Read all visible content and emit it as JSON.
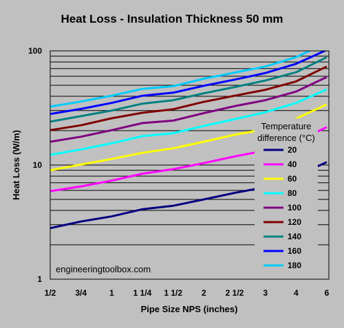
{
  "chart_data": {
    "type": "line",
    "title": "Heat Loss - Insulation Thickness 50 mm",
    "xlabel": "Pipe Size NPS (inches)",
    "ylabel": "Heat Loss (W/m)",
    "yscale": "log",
    "ylim": [
      1,
      100
    ],
    "y_tick_labels": [
      "1",
      "10",
      "100"
    ],
    "categories": [
      "1/2",
      "3/4",
      "1",
      "1 1/4",
      "1 1/2",
      "2",
      "2 1/2",
      "3",
      "4",
      "6"
    ],
    "grid": true,
    "legend": {
      "title_line1": "Temperature",
      "title_line2": "difference (°C)",
      "placement": "right"
    },
    "watermark": "engineeringtoolbox.com",
    "series": [
      {
        "name": "20",
        "color": "#000080",
        "values": [
          2.8,
          3.2,
          3.55,
          4.1,
          4.4,
          5.0,
          5.7,
          6.4,
          8.0,
          10.6
        ]
      },
      {
        "name": "40",
        "color": "#ff00ff",
        "values": [
          5.9,
          6.5,
          7.3,
          8.4,
          9.2,
          10.4,
          11.9,
          13.4,
          16.0,
          21.5
        ]
      },
      {
        "name": "60",
        "color": "#ffff00",
        "values": [
          9.0,
          10.1,
          11.3,
          12.8,
          14.0,
          16.0,
          18.4,
          20.6,
          25.5,
          34.0
        ]
      },
      {
        "name": "80",
        "color": "#00ffff",
        "values": [
          12.3,
          13.7,
          15.5,
          17.9,
          19.0,
          22.0,
          25.2,
          29.0,
          35.0,
          46.0
        ]
      },
      {
        "name": "100",
        "color": "#800080",
        "values": [
          16.0,
          17.7,
          20.2,
          23.3,
          24.5,
          28.5,
          32.8,
          37.0,
          44.0,
          59.0
        ]
      },
      {
        "name": "120",
        "color": "#800000",
        "values": [
          20.2,
          22.3,
          25.7,
          28.7,
          30.8,
          35.8,
          40.5,
          45.6,
          54.0,
          73.0
        ]
      },
      {
        "name": "140",
        "color": "#008080",
        "values": [
          24.0,
          26.8,
          30.0,
          34.5,
          37.0,
          42.5,
          48.2,
          55.0,
          65.0,
          88.0
        ]
      },
      {
        "name": "160",
        "color": "#0000ff",
        "values": [
          28.0,
          31.0,
          35.0,
          40.5,
          43.0,
          49.5,
          56.0,
          64.0,
          77.0,
          102.0
        ]
      },
      {
        "name": "180",
        "color": "#00ccff",
        "values": [
          32.5,
          36.0,
          40.5,
          46.5,
          49.0,
          57.0,
          64.5,
          73.0,
          88.0,
          118.0
        ]
      }
    ]
  }
}
